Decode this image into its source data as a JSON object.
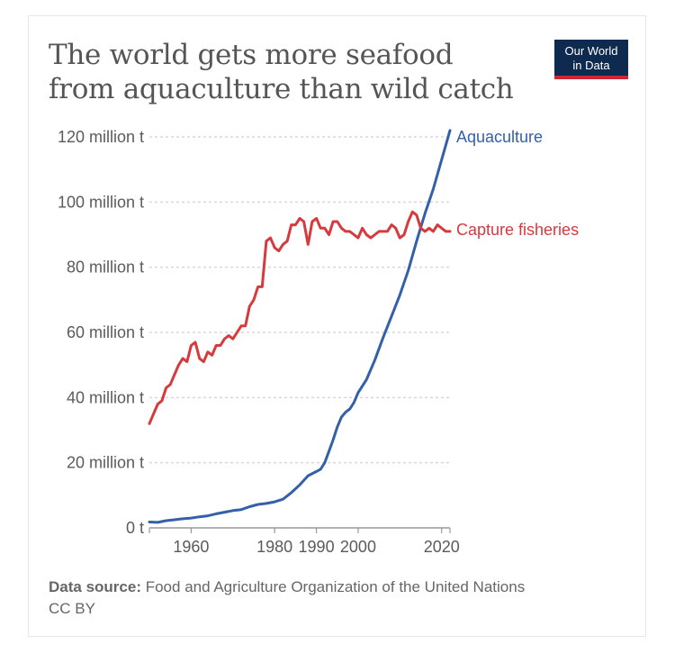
{
  "header": {
    "title": "The world gets more seafood from aquaculture than wild catch",
    "logo_line1": "Our World",
    "logo_line2": "in Data"
  },
  "footer": {
    "source_label": "Data source:",
    "source_text": "Food and Agriculture Organization of the United Nations",
    "license": "CC BY"
  },
  "colors": {
    "aquaculture": "#3360a9",
    "capture": "#d73a3c",
    "grid": "#d8d8d8",
    "axis": "#999999"
  },
  "chart_data": {
    "type": "line",
    "title": "The world gets more seafood from aquaculture than wild catch",
    "xlabel": "",
    "ylabel": "",
    "xlim": [
      1950,
      2022
    ],
    "ylim": [
      0,
      120
    ],
    "y_unit": "million t",
    "y_ticks": [
      {
        "value": 0,
        "label": "0 t"
      },
      {
        "value": 20,
        "label": "20 million t"
      },
      {
        "value": 40,
        "label": "40 million t"
      },
      {
        "value": 60,
        "label": "60 million t"
      },
      {
        "value": 80,
        "label": "80 million t"
      },
      {
        "value": 100,
        "label": "100 million t"
      },
      {
        "value": 120,
        "label": "120 million t"
      }
    ],
    "x_ticks": [
      {
        "value": 1960,
        "label": "1960"
      },
      {
        "value": 1980,
        "label": "1980"
      },
      {
        "value": 1990,
        "label": "1990"
      },
      {
        "value": 2000,
        "label": "2000"
      },
      {
        "value": 2020,
        "label": "2020"
      }
    ],
    "series": [
      {
        "name": "Aquaculture",
        "key": "aquaculture",
        "label_value": 120,
        "x": [
          1950,
          1952,
          1954,
          1956,
          1958,
          1960,
          1962,
          1964,
          1966,
          1968,
          1970,
          1972,
          1974,
          1976,
          1978,
          1980,
          1982,
          1984,
          1986,
          1988,
          1990,
          1991,
          1992,
          1993,
          1994,
          1995,
          1996,
          1997,
          1998,
          1999,
          2000,
          2002,
          2004,
          2006,
          2008,
          2010,
          2012,
          2014,
          2016,
          2018,
          2020,
          2022
        ],
        "values": [
          1.8,
          1.7,
          2.2,
          2.5,
          2.8,
          3.0,
          3.4,
          3.7,
          4.3,
          4.8,
          5.3,
          5.6,
          6.5,
          7.2,
          7.5,
          8.0,
          8.8,
          10.8,
          13.2,
          16.0,
          17.3,
          18.0,
          20.0,
          23.5,
          27.0,
          31.0,
          34.0,
          35.5,
          36.5,
          38.5,
          41.5,
          45.5,
          51.5,
          58.5,
          65.0,
          71.5,
          79.0,
          88.0,
          96.5,
          104.0,
          113.0,
          122.0
        ]
      },
      {
        "name": "Capture fisheries",
        "key": "capture",
        "label_value": 91.5,
        "x": [
          1950,
          1951,
          1952,
          1953,
          1954,
          1955,
          1956,
          1957,
          1958,
          1959,
          1960,
          1961,
          1962,
          1963,
          1964,
          1965,
          1966,
          1967,
          1968,
          1969,
          1970,
          1971,
          1972,
          1973,
          1974,
          1975,
          1976,
          1977,
          1978,
          1979,
          1980,
          1981,
          1982,
          1983,
          1984,
          1985,
          1986,
          1987,
          1988,
          1989,
          1990,
          1991,
          1992,
          1993,
          1994,
          1995,
          1996,
          1997,
          1998,
          1999,
          2000,
          2001,
          2002,
          2003,
          2004,
          2005,
          2006,
          2007,
          2008,
          2009,
          2010,
          2011,
          2012,
          2013,
          2014,
          2015,
          2016,
          2017,
          2018,
          2019,
          2020,
          2021,
          2022
        ],
        "values": [
          32,
          35,
          38,
          39,
          43,
          44,
          47,
          50,
          52,
          51,
          56,
          57,
          52,
          51,
          54,
          53,
          56,
          56,
          58,
          59,
          58,
          60,
          62,
          62,
          68,
          70,
          74,
          74,
          88,
          89,
          86,
          85,
          87,
          88,
          93,
          93,
          95,
          94,
          87,
          94,
          95,
          92,
          92,
          90,
          94,
          94,
          92,
          91,
          91,
          90,
          89,
          92,
          90,
          89,
          90,
          91,
          91,
          91,
          93,
          92,
          89,
          90,
          94,
          97,
          96,
          92,
          91,
          92,
          91,
          93,
          92,
          91,
          91
        ]
      }
    ]
  }
}
